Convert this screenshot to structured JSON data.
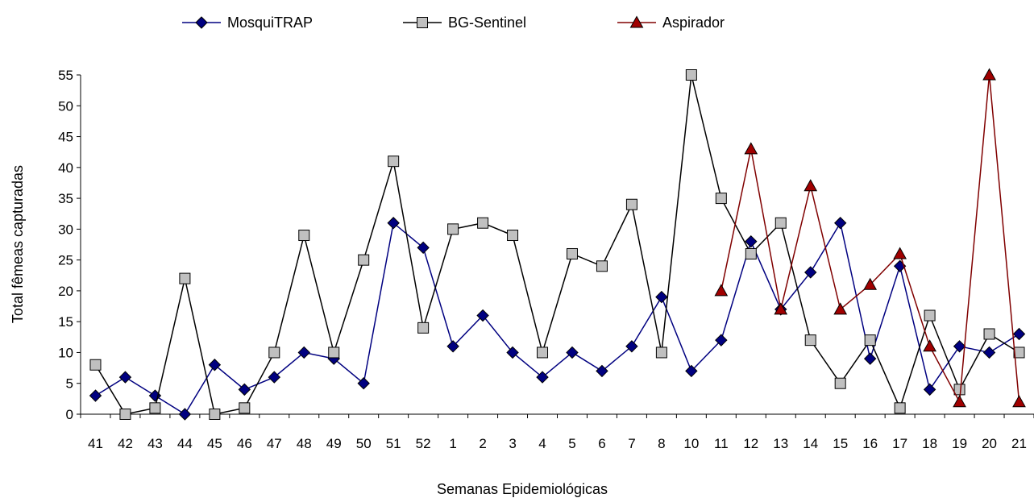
{
  "chart_data": {
    "type": "line",
    "xlabel": "Semanas Epidemiológicas",
    "ylabel": "Total fêmeas capturadas",
    "ylim": [
      0,
      55
    ],
    "yticks": [
      0,
      5,
      10,
      15,
      20,
      25,
      30,
      35,
      40,
      45,
      50,
      55
    ],
    "grid": false,
    "legend_position": "top",
    "categories": [
      "41",
      "42",
      "43",
      "44",
      "45",
      "46",
      "47",
      "48",
      "49",
      "50",
      "51",
      "52",
      "1",
      "2",
      "3",
      "4",
      "5",
      "6",
      "7",
      "8",
      "10",
      "11",
      "12",
      "13",
      "14",
      "15",
      "16",
      "17",
      "18",
      "19",
      "20",
      "21"
    ],
    "series": [
      {
        "name": "MosquiTRAP",
        "marker": "diamond",
        "color": "#000080",
        "marker_fill": "#000080",
        "values": [
          3,
          6,
          3,
          0,
          8,
          4,
          6,
          10,
          9,
          5,
          31,
          27,
          11,
          16,
          10,
          6,
          10,
          7,
          11,
          19,
          7,
          12,
          28,
          17,
          23,
          31,
          9,
          24,
          4,
          11,
          10,
          13
        ]
      },
      {
        "name": "BG-Sentinel",
        "marker": "square",
        "color": "#000000",
        "marker_fill": "#c0c0c0",
        "values": [
          8,
          0,
          1,
          22,
          0,
          1,
          10,
          29,
          10,
          25,
          41,
          14,
          30,
          31,
          29,
          10,
          26,
          24,
          34,
          10,
          55,
          35,
          26,
          31,
          12,
          5,
          12,
          1,
          16,
          4,
          13,
          10
        ]
      },
      {
        "name": "Aspirador",
        "marker": "triangle",
        "color": "#800000",
        "marker_fill": "#a00000",
        "values": [
          null,
          null,
          null,
          null,
          null,
          null,
          null,
          null,
          null,
          null,
          null,
          null,
          null,
          null,
          null,
          null,
          null,
          null,
          null,
          null,
          null,
          20,
          43,
          17,
          37,
          17,
          21,
          26,
          11,
          2,
          55,
          2
        ]
      }
    ]
  }
}
